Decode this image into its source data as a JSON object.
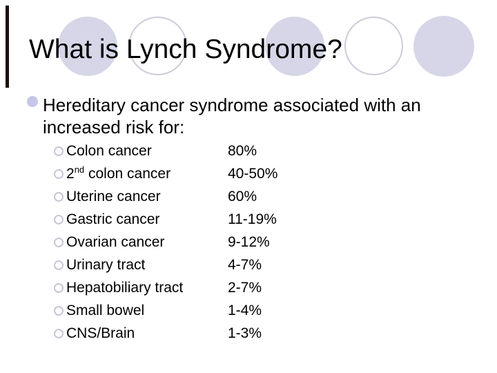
{
  "slide": {
    "title": "What is Lynch Syndrome?",
    "lead": "Hereditary cancer syndrome associated with an increased risk for:",
    "risks": [
      {
        "pre": "Colon cancer",
        "sup": "",
        "post": "",
        "pct": "80%"
      },
      {
        "pre": "2",
        "sup": "nd",
        "post": " colon cancer",
        "pct": "40-50%"
      },
      {
        "pre": "Uterine cancer",
        "sup": "",
        "post": "",
        "pct": "60%"
      },
      {
        "pre": "Gastric cancer",
        "sup": "",
        "post": "",
        "pct": "11-19%"
      },
      {
        "pre": "Ovarian cancer",
        "sup": "",
        "post": "",
        "pct": "9-12%"
      },
      {
        "pre": "Urinary tract",
        "sup": "",
        "post": "",
        "pct": "4-7%"
      },
      {
        "pre": "Hepatobiliary tract",
        "sup": "",
        "post": "",
        "pct": "2-7%"
      },
      {
        "pre": "Small bowel",
        "sup": "",
        "post": "",
        "pct": "1-4%"
      },
      {
        "pre": "CNS/Brain",
        "sup": "",
        "post": "",
        "pct": "1-3%"
      }
    ]
  },
  "colors": {
    "background": "#ffffff",
    "text": "#000000",
    "circle_fill": "#d6d6e8",
    "circle_outline": "#ccccda",
    "bullet_dot": "#c6c6ea",
    "ring_stroke": "#c6c6da",
    "accent_bar": "#1e0d0a"
  }
}
